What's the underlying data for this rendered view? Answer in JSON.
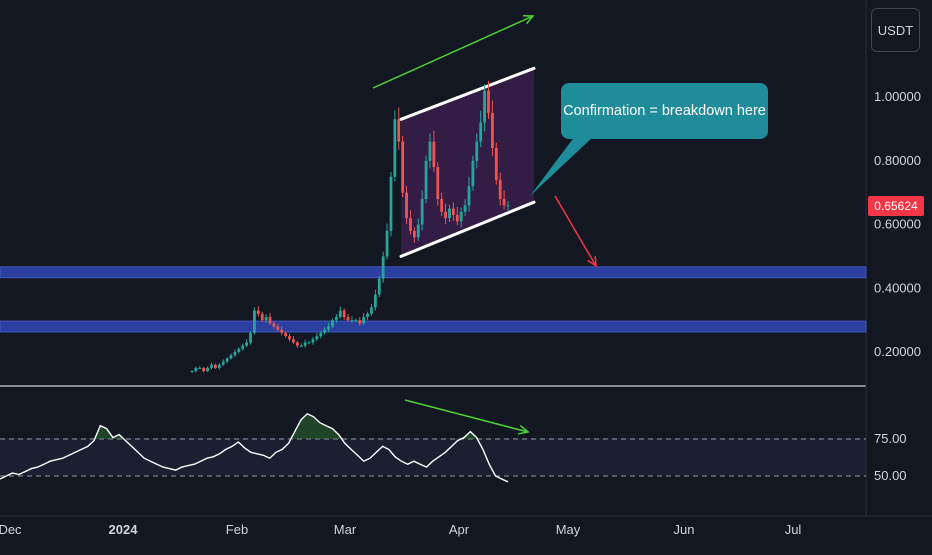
{
  "toolbar": {
    "currency_label": "USDT"
  },
  "annotations": {
    "callout_text": "Confirmation = breakdown here",
    "price_up_arrow": "green",
    "rsi_down_arrow": "green",
    "breakdown_arrow": "red"
  },
  "last_price": "0.65624",
  "colors": {
    "background": "#131722",
    "up": "#26a69a",
    "down": "#ef5350",
    "support_band": "#2a3fa0",
    "channel_fill": "#3a1e4a",
    "callout": "#1f8c9a",
    "annotation_green": "#4cd137",
    "annotation_red": "#f23645",
    "rsi_line": "#ffffff"
  },
  "chart_data": [
    {
      "type": "candlestick",
      "title": "",
      "quote_currency": "USDT",
      "x_ticks": [
        "Dec",
        "2024",
        "Feb",
        "Mar",
        "Apr",
        "May",
        "Jun",
        "Jul"
      ],
      "y_ticks": [
        "0.20000",
        "0.40000",
        "0.60000",
        "0.80000",
        "1.00000"
      ],
      "ylim": [
        0.12,
        1.17
      ],
      "grid": false,
      "horizontal_levels": [
        0.45,
        0.28
      ],
      "channel": {
        "upper": [
          {
            "x": "2024-03-18",
            "y": 0.93
          },
          {
            "x": "2024-04-20",
            "y": 1.09
          }
        ],
        "lower": [
          {
            "x": "2024-03-18",
            "y": 0.5
          },
          {
            "x": "2024-04-20",
            "y": 0.67
          }
        ]
      },
      "breakdown_target": 0.45,
      "closes": [
        0.14,
        0.15,
        0.15,
        0.14,
        0.15,
        0.16,
        0.15,
        0.16,
        0.17,
        0.18,
        0.19,
        0.2,
        0.21,
        0.22,
        0.23,
        0.26,
        0.33,
        0.32,
        0.3,
        0.31,
        0.29,
        0.28,
        0.27,
        0.26,
        0.25,
        0.24,
        0.23,
        0.22,
        0.22,
        0.23,
        0.23,
        0.24,
        0.25,
        0.26,
        0.27,
        0.28,
        0.3,
        0.31,
        0.33,
        0.31,
        0.3,
        0.3,
        0.3,
        0.29,
        0.31,
        0.32,
        0.34,
        0.38,
        0.43,
        0.5,
        0.58,
        0.75,
        0.93,
        0.86,
        0.7,
        0.62,
        0.58,
        0.56,
        0.6,
        0.68,
        0.8,
        0.86,
        0.78,
        0.68,
        0.64,
        0.62,
        0.65,
        0.63,
        0.61,
        0.64,
        0.66,
        0.72,
        0.8,
        0.86,
        0.92,
        1.02,
        0.95,
        0.84,
        0.74,
        0.68,
        0.66,
        0.66
      ]
    },
    {
      "type": "line",
      "title": "",
      "y_ticks": [
        "50.00",
        "75.00"
      ],
      "ylim": [
        32,
        96
      ],
      "reference_lines": [
        50,
        75
      ],
      "values": [
        48,
        50,
        52,
        51,
        53,
        55,
        56,
        58,
        60,
        61,
        62,
        64,
        66,
        68,
        70,
        74,
        84,
        82,
        76,
        78,
        74,
        70,
        66,
        62,
        60,
        58,
        56,
        55,
        54,
        56,
        57,
        58,
        60,
        62,
        63,
        65,
        68,
        70,
        73,
        69,
        66,
        65,
        64,
        62,
        66,
        68,
        72,
        80,
        88,
        92,
        90,
        86,
        84,
        82,
        78,
        72,
        68,
        64,
        60,
        62,
        66,
        70,
        68,
        63,
        60,
        58,
        60,
        58,
        56,
        60,
        63,
        66,
        70,
        74,
        76,
        80,
        76,
        68,
        58,
        50,
        48,
        46
      ]
    }
  ]
}
